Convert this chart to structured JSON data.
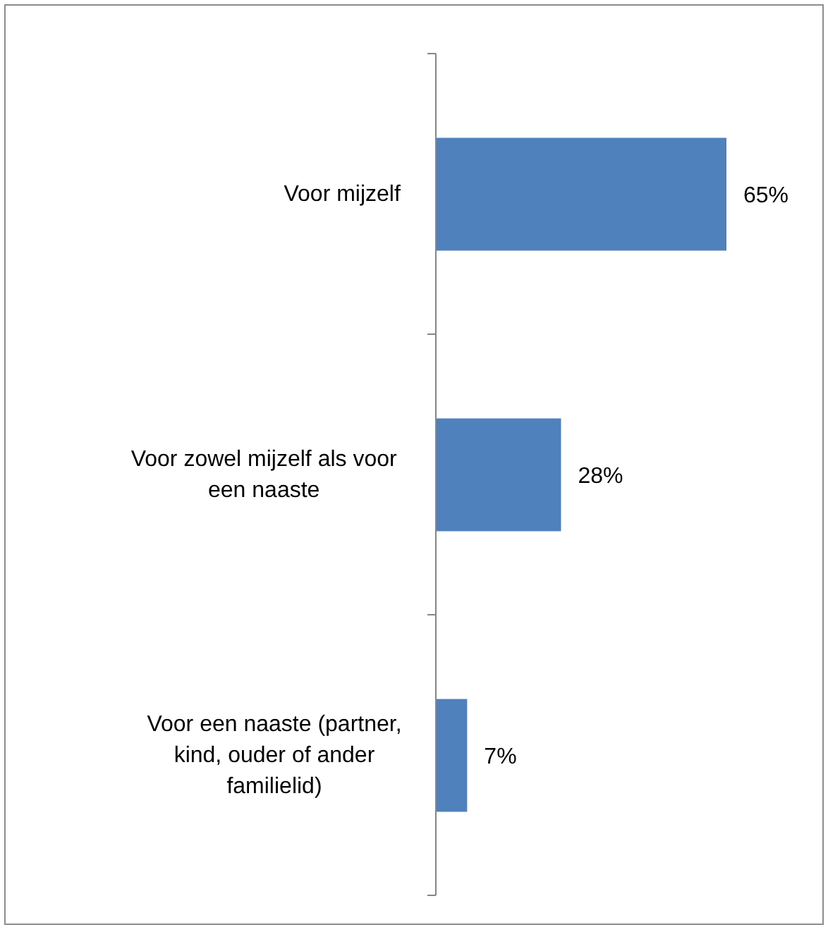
{
  "chart_data": {
    "type": "bar",
    "orientation": "horizontal",
    "categories": [
      "Voor mijzelf",
      "Voor zowel mijzelf als voor een naaste",
      "Voor een naaste (partner, kind, ouder of ander familielid)"
    ],
    "values": [
      65,
      28,
      7
    ],
    "value_labels": [
      "65%",
      "28%",
      "7%"
    ],
    "color": "#4f81bd"
  }
}
